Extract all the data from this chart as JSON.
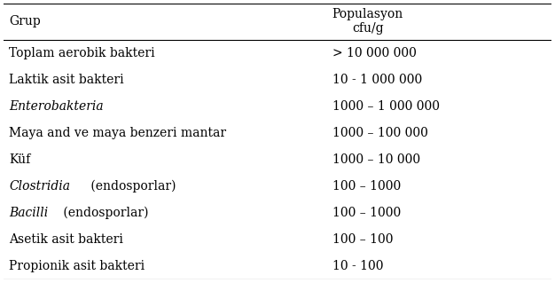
{
  "col1_header": "Grup",
  "col2_header": "Populasyon\ncfu/g",
  "rows": [
    {
      "grup": "Toplam aerobik bakteri",
      "pop": "> 10 000 000",
      "italic_part": null
    },
    {
      "grup": "Laktik asit bakteri",
      "pop": "10 - 1 000 000",
      "italic_part": null
    },
    {
      "grup": "Enterobakteria",
      "pop": "1000 – 1 000 000",
      "italic_part": "Enterobakteria"
    },
    {
      "grup": "Maya and ve maya benzeri mantar",
      "pop": "1000 – 100 000",
      "italic_part": null
    },
    {
      "grup": "Küf",
      "pop": "1000 – 10 000",
      "italic_part": null
    },
    {
      "grup": "Clostridia (endosporlar)",
      "pop": "100 – 1000",
      "italic_part": "Clostridia"
    },
    {
      "grup": "Bacilli (endosporlar)",
      "pop": "100 – 1000",
      "italic_part": "Bacilli"
    },
    {
      "grup": "Asetik asit bakteri",
      "pop": "100 – 100",
      "italic_part": null
    },
    {
      "grup": "Propionik asit bakteri",
      "pop": "10 - 100",
      "italic_part": null
    }
  ],
  "bg_color": "#ffffff",
  "text_color": "#000000",
  "font_size": 10,
  "header_font_size": 10,
  "col_split": 0.58,
  "figsize": [
    6.26,
    3.19
  ],
  "dpi": 100
}
